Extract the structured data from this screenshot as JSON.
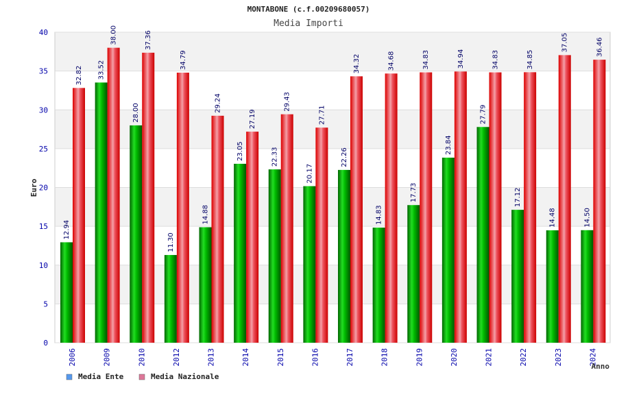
{
  "chart_data": {
    "type": "bar",
    "title": "MONTABONE (c.f.00209680057)",
    "subtitle": "Media Importi",
    "xlabel": "Anno",
    "ylabel": "Euro",
    "ylim": [
      0,
      40
    ],
    "yticks": [
      0,
      5,
      10,
      15,
      20,
      25,
      30,
      35,
      40
    ],
    "grid": true,
    "legend_position": "bottom-left",
    "categories": [
      "2006",
      "2009",
      "2010",
      "2012",
      "2013",
      "2014",
      "2015",
      "2016",
      "2017",
      "2018",
      "2019",
      "2020",
      "2021",
      "2022",
      "2023",
      "2024"
    ],
    "series": [
      {
        "name": "Media Ente",
        "color": "#00aa00",
        "legend_color": "#5599ee",
        "values": [
          12.94,
          33.52,
          28.0,
          11.3,
          14.88,
          23.05,
          22.33,
          20.17,
          22.26,
          14.83,
          17.73,
          23.84,
          27.79,
          17.12,
          14.48,
          14.5
        ],
        "labels": [
          "12.94",
          "33.52",
          "28.00",
          "11.30",
          "14.88",
          "23.05",
          "22.33",
          "20.17",
          "22.26",
          "14.83",
          "17.73",
          "23.84",
          "27.79",
          "17.12",
          "14.48",
          "14.50"
        ]
      },
      {
        "name": "Media Nazionale",
        "color": "#ee1111",
        "legend_color": "#dd7799",
        "values": [
          32.82,
          38.0,
          37.36,
          34.79,
          29.24,
          27.19,
          29.43,
          27.71,
          34.32,
          34.68,
          34.83,
          34.94,
          34.83,
          34.85,
          37.05,
          36.46
        ],
        "labels": [
          "32.82",
          "38.00",
          "37.36",
          "34.79",
          "29.24",
          "27.19",
          "29.43",
          "27.71",
          "34.32",
          "34.68",
          "34.83",
          "34.94",
          "34.83",
          "34.85",
          "37.05",
          "36.46"
        ]
      }
    ]
  }
}
